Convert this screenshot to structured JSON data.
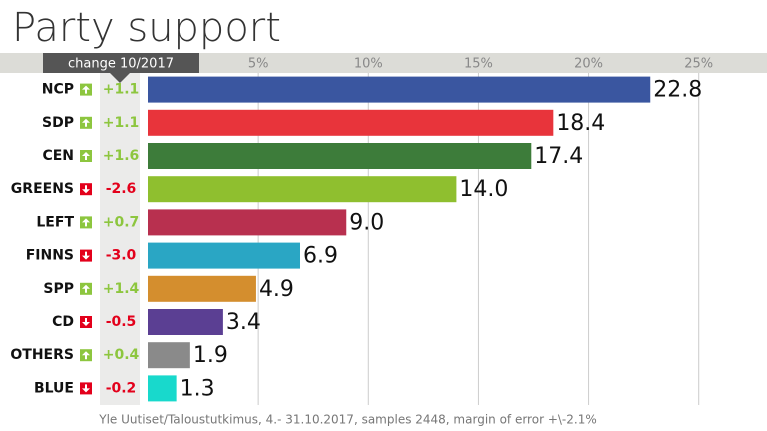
{
  "chart_data": {
    "type": "bar",
    "orientation": "horizontal",
    "title": "Party support",
    "change_header": "change 10/2017",
    "categories": [
      "NCP",
      "SDP",
      "CEN",
      "GREENS",
      "LEFT",
      "FINNS",
      "SPP",
      "CD",
      "OTHERS",
      "BLUE"
    ],
    "values": [
      22.8,
      18.4,
      17.4,
      14.0,
      9.0,
      6.9,
      4.9,
      3.4,
      1.9,
      1.3
    ],
    "value_labels": [
      "22.8",
      "18.4",
      "17.4",
      "14.0",
      "9.0",
      "6.9",
      "4.9",
      "3.4",
      "1.9",
      "1.3"
    ],
    "colors": [
      "#3a56a0",
      "#e8343b",
      "#3d7c3a",
      "#8fbf2f",
      "#b8304f",
      "#2aa6c4",
      "#d48e2e",
      "#5b3f93",
      "#8a8a8a",
      "#18d9cc"
    ],
    "changes": [
      1.1,
      1.1,
      1.6,
      -2.6,
      0.7,
      -3.0,
      1.4,
      -0.5,
      0.4,
      -0.2
    ],
    "change_labels": [
      "+1.1",
      "+1.1",
      "+1.6",
      "-2.6",
      "+0.7",
      "-3.0",
      "+1.4",
      "-0.5",
      "+0.4",
      "-0.2"
    ],
    "up_color": "#8dc63f",
    "down_color": "#e3001b",
    "xlim": [
      0,
      28.1
    ],
    "xticks": [
      {
        "value": 5,
        "label": "5%"
      },
      {
        "value": 10,
        "label": "10%"
      },
      {
        "value": 15,
        "label": "15%"
      },
      {
        "value": 20,
        "label": "20%"
      },
      {
        "value": 25,
        "label": "25%"
      }
    ],
    "grid": true,
    "source": "Yle Uutiset/Taloustutkimus, 4.- 31.10.2017, samples 2448, margin of error +\\-2.1%"
  }
}
